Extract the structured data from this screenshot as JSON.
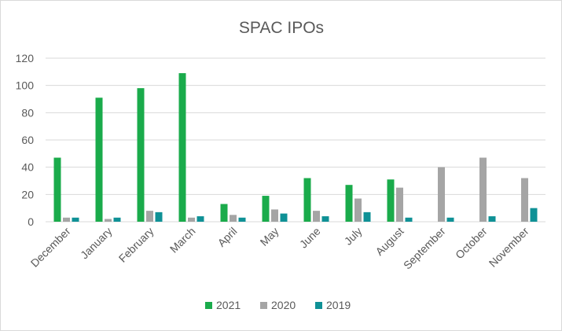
{
  "chart_data": {
    "type": "bar",
    "title": "SPAC IPOs",
    "xlabel": "",
    "ylabel": "",
    "ylim": [
      0,
      120
    ],
    "yticks": [
      0,
      20,
      40,
      60,
      80,
      100,
      120
    ],
    "grid": true,
    "legend_position": "bottom",
    "categories": [
      "December",
      "January",
      "February",
      "March",
      "April",
      "May",
      "June",
      "July",
      "August",
      "September",
      "October",
      "November"
    ],
    "series": [
      {
        "name": "2021",
        "color": "#1aab4b",
        "values": [
          47,
          91,
          98,
          109,
          13,
          19,
          32,
          27,
          31,
          0,
          0,
          0
        ]
      },
      {
        "name": "2020",
        "color": "#a5a5a5",
        "values": [
          3,
          2,
          8,
          3,
          5,
          9,
          8,
          17,
          25,
          40,
          47,
          32
        ]
      },
      {
        "name": "2019",
        "color": "#0f9196",
        "values": [
          3,
          3,
          7,
          4,
          3,
          6,
          4,
          7,
          3,
          3,
          4,
          10
        ]
      }
    ]
  }
}
